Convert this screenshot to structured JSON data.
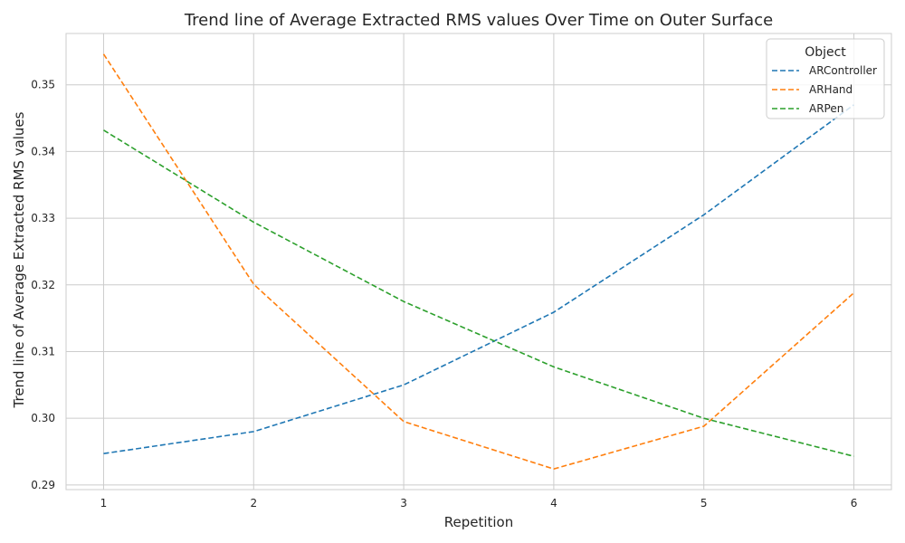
{
  "chart_data": {
    "type": "line",
    "title": "Trend line of Average Extracted RMS values Over Time on Outer Surface",
    "xlabel": "Repetition",
    "ylabel": "Trend line of Average Extracted RMS values",
    "x": [
      1,
      2,
      3,
      4,
      5,
      6
    ],
    "xticks": [
      "1",
      "2",
      "3",
      "4",
      "5",
      "6"
    ],
    "yticks": [
      "0.29",
      "0.30",
      "0.31",
      "0.32",
      "0.33",
      "0.34",
      "0.35"
    ],
    "xlim": [
      0.75,
      6.25
    ],
    "ylim": [
      0.2893,
      0.3577
    ],
    "grid": true,
    "line_style": "dashed",
    "legend": {
      "title": "Object",
      "placement": "top-right"
    },
    "series": [
      {
        "name": "ARController",
        "color": "#1f77b4",
        "values": [
          0.2947,
          0.298,
          0.305,
          0.3159,
          0.3305,
          0.347
        ]
      },
      {
        "name": "ARHand",
        "color": "#ff7f0e",
        "values": [
          0.3546,
          0.3201,
          0.2995,
          0.2924,
          0.2988,
          0.3188
        ]
      },
      {
        "name": "ARPen",
        "color": "#2ca02c",
        "values": [
          0.3432,
          0.3294,
          0.3175,
          0.3077,
          0.3,
          0.2943
        ]
      }
    ]
  }
}
